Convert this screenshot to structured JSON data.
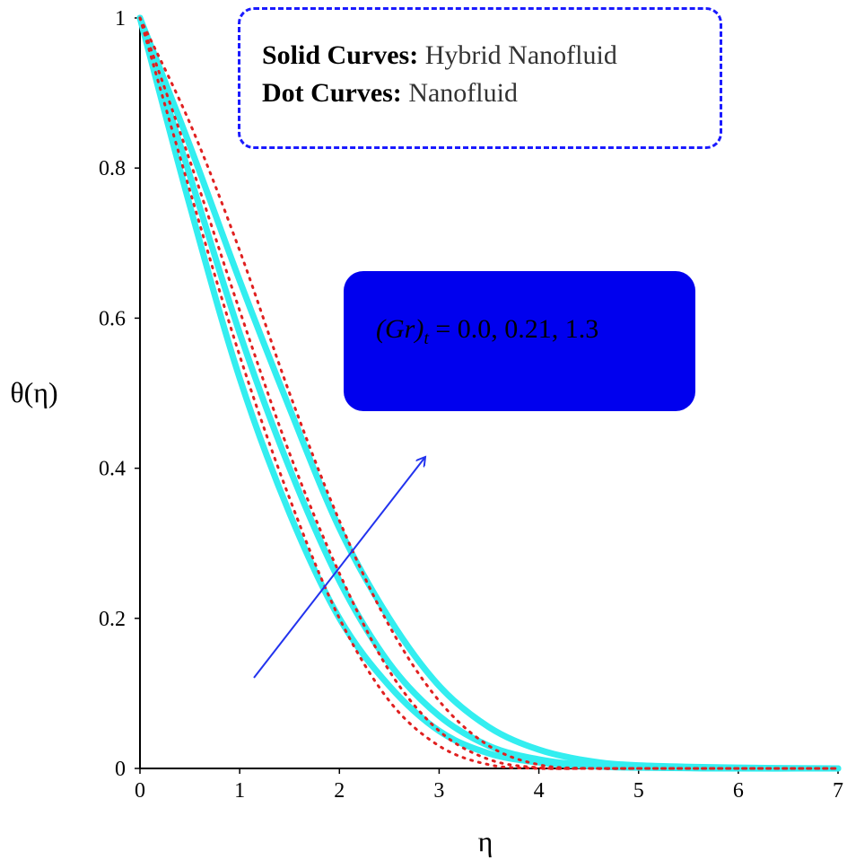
{
  "chart_data": {
    "type": "line",
    "xlabel": "η",
    "ylabel": "θ(η)",
    "xlim": [
      0,
      7
    ],
    "ylim": [
      0,
      1
    ],
    "xticks": [
      "0",
      "1",
      "2",
      "3",
      "4",
      "5",
      "6",
      "7"
    ],
    "yticks": [
      "0",
      "0.2",
      "0.4",
      "0.6",
      "0.8",
      "1"
    ],
    "legend": {
      "line1_bold": "Solid Curves:",
      "line1_text": " Hybrid Nanofluid",
      "line2_bold": "Dot Curves:",
      "line2_text": " Nanofluid"
    },
    "annotation": {
      "param_symbol": "(Gr)",
      "param_sub": "t",
      "param_values": " = 0.0, 0.21, 1.3"
    },
    "colors": {
      "solid": "#33eef0",
      "dotted": "#e02020",
      "arrow": "#2233ee",
      "axis": "#000000"
    },
    "series": [
      {
        "style": "solid",
        "x": [
          0,
          0.5,
          1,
          1.5,
          2,
          2.5,
          3,
          3.5,
          4,
          4.5,
          5,
          6,
          7
        ],
        "values": [
          1,
          0.75,
          0.52,
          0.34,
          0.2,
          0.11,
          0.05,
          0.02,
          0.008,
          0.003,
          0.001,
          0,
          0
        ]
      },
      {
        "style": "solid",
        "x": [
          0,
          0.5,
          1,
          1.5,
          2,
          2.5,
          3,
          3.5,
          4,
          4.5,
          5,
          6,
          7
        ],
        "values": [
          1,
          0.79,
          0.58,
          0.4,
          0.25,
          0.14,
          0.07,
          0.03,
          0.012,
          0.004,
          0.0015,
          0,
          0
        ]
      },
      {
        "style": "solid",
        "x": [
          0,
          0.5,
          1,
          1.5,
          2,
          2.5,
          3,
          3.5,
          4,
          4.5,
          5,
          6,
          7
        ],
        "values": [
          1,
          0.83,
          0.65,
          0.48,
          0.32,
          0.2,
          0.11,
          0.055,
          0.025,
          0.01,
          0.004,
          0.001,
          0
        ]
      },
      {
        "style": "dotted",
        "x": [
          0,
          0.5,
          1,
          1.5,
          2,
          2.5,
          3,
          3.5,
          4,
          4.5,
          5,
          6,
          7
        ],
        "values": [
          1,
          0.77,
          0.55,
          0.36,
          0.2,
          0.09,
          0.03,
          0.005,
          0,
          0,
          0,
          0,
          0
        ]
      },
      {
        "style": "dotted",
        "x": [
          0,
          0.5,
          1,
          1.5,
          2,
          2.5,
          3,
          3.5,
          4,
          4.5,
          5,
          6,
          7
        ],
        "values": [
          1,
          0.81,
          0.61,
          0.42,
          0.26,
          0.13,
          0.05,
          0.012,
          0.001,
          0,
          0,
          0,
          0
        ]
      },
      {
        "style": "dotted",
        "x": [
          0,
          0.5,
          1,
          1.5,
          2,
          2.5,
          3,
          3.5,
          4,
          4.5,
          5,
          6,
          7
        ],
        "values": [
          1,
          0.86,
          0.69,
          0.5,
          0.33,
          0.19,
          0.09,
          0.03,
          0.005,
          0,
          0,
          0,
          0
        ]
      }
    ]
  }
}
